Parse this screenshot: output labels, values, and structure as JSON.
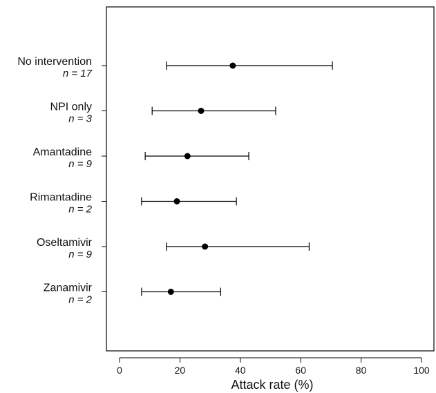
{
  "chart_data": {
    "type": "forest",
    "title": "",
    "xlabel": "Attack rate (%)",
    "ylabel": "",
    "xlim": [
      0,
      100
    ],
    "xticks": [
      "0",
      "20",
      "40",
      "60",
      "80",
      "100"
    ],
    "grid": false,
    "legend": "none",
    "colors": {
      "marker": "#000000",
      "line": "#000000",
      "frame": "#000000"
    },
    "categories": [
      "No intervention",
      "NPI only",
      "Amantadine",
      "Rimantadine",
      "Oseltamivir",
      "Zanamivir"
    ],
    "n_labels": [
      "n = 17",
      "n = 3",
      "n = 9",
      "n = 2",
      "n = 9",
      "n = 2"
    ],
    "estimates": [
      37.5,
      27,
      22.5,
      19,
      28.3,
      17
    ],
    "lower": [
      15.5,
      10.8,
      8.5,
      7.3,
      15.5,
      7.3
    ],
    "upper": [
      70.5,
      51.7,
      42.8,
      38.7,
      62.8,
      33.5
    ]
  }
}
